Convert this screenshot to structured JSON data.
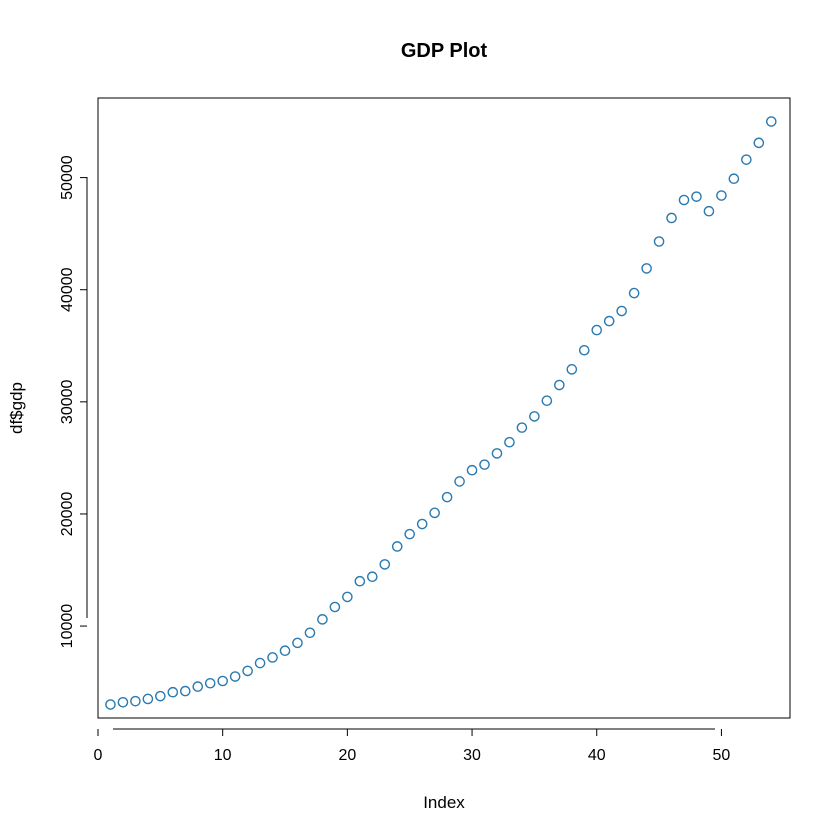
{
  "chart_data": {
    "type": "scatter",
    "title": "GDP Plot",
    "xlabel": "Index",
    "ylabel": "df$gdp",
    "xlim": [
      0,
      55.5
    ],
    "ylim": [
      1800,
      57100
    ],
    "xticks": [
      0,
      10,
      20,
      30,
      40,
      50
    ],
    "yticks": [
      10000,
      20000,
      30000,
      40000,
      50000
    ],
    "grid": false,
    "legend": "none",
    "point_color": "#2a7ab0",
    "x": [
      1,
      2,
      3,
      4,
      5,
      6,
      7,
      8,
      9,
      10,
      11,
      12,
      13,
      14,
      15,
      16,
      17,
      18,
      19,
      20,
      21,
      22,
      23,
      24,
      25,
      26,
      27,
      28,
      29,
      30,
      31,
      32,
      33,
      34,
      35,
      36,
      37,
      38,
      39,
      40,
      41,
      42,
      43,
      44,
      45,
      46,
      47,
      48,
      49,
      50,
      51,
      52,
      53,
      54
    ],
    "y": [
      3000,
      3200,
      3300,
      3500,
      3750,
      4100,
      4200,
      4600,
      4900,
      5100,
      5500,
      6000,
      6700,
      7200,
      7800,
      8500,
      9400,
      10600,
      11700,
      12600,
      14000,
      14400,
      15500,
      17100,
      18200,
      19100,
      20100,
      21500,
      22900,
      23900,
      24400,
      25400,
      26400,
      27700,
      28700,
      30100,
      31500,
      32900,
      34600,
      36400,
      37200,
      38100,
      39700,
      41900,
      44300,
      46400,
      48000,
      48300,
      47000,
      48400,
      49900,
      51600,
      53100,
      55000
    ]
  }
}
